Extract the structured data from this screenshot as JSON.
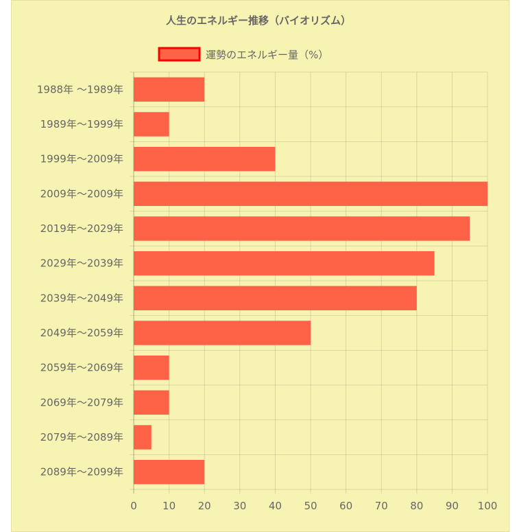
{
  "chart_data": {
    "type": "bar",
    "orientation": "horizontal",
    "title": "人生のエネルギー推移（バイオリズム）",
    "legend": "運勢のエネルギー量（%）",
    "legend_position": "top",
    "categories": [
      "1988年 ～1989年",
      "1989年～1999年",
      "1999年～2009年",
      "2009年～2009年",
      "2019年～2029年",
      "2029年～2039年",
      "2039年～2049年",
      "2049年～2059年",
      "2059年～2069年",
      "2069年～2079年",
      "2079年～2089年",
      "2089年～2099年"
    ],
    "series": [
      {
        "name": "運勢のエネルギー量（%）",
        "values": [
          20,
          10,
          40,
          100,
          95,
          85,
          80,
          50,
          10,
          10,
          5,
          20
        ]
      }
    ],
    "xlim": [
      0,
      100
    ],
    "xticks": [
      "0",
      "10",
      "20",
      "30",
      "40",
      "50",
      "60",
      "70",
      "80",
      "90",
      "100"
    ],
    "grid": true,
    "colors": {
      "bar_fill": "#ff6347",
      "legend_border": "#ff0000",
      "background": "#f7f4b3"
    }
  }
}
